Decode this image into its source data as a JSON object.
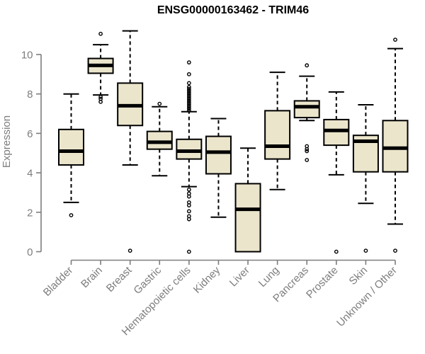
{
  "chart_data": {
    "type": "boxplot",
    "title": "ENSG00000163462 - TRIM46",
    "ylabel": "Expression",
    "xlabel": "",
    "ylim": [
      0,
      11.5
    ],
    "yticks": [
      0,
      2,
      4,
      6,
      8,
      10
    ],
    "grid": false,
    "legend": "none",
    "colors": {
      "box_fill": "#ebe5cc",
      "box_stroke": "#000000",
      "axis": "#7d7d7d",
      "label_text": "#7d7d7d",
      "title_text": "#000000"
    },
    "categories": [
      "Bladder",
      "Brain",
      "Breast",
      "Gastric",
      "Hematopoietic cells",
      "Kidney",
      "Liver",
      "Lung",
      "Pancreas",
      "Prostate",
      "Skin",
      "Unknown / Other"
    ],
    "boxes": [
      {
        "label": "Bladder",
        "whisker_low": 2.5,
        "q1": 4.4,
        "median": 5.1,
        "q3": 6.2,
        "whisker_high": 8.0,
        "outliers": [
          1.85
        ]
      },
      {
        "label": "Brain",
        "whisker_low": 7.95,
        "q1": 9.05,
        "median": 9.45,
        "q3": 9.8,
        "whisker_high": 10.5,
        "outliers": [
          11.05,
          7.85,
          7.75,
          7.6
        ]
      },
      {
        "label": "Breast",
        "whisker_low": 4.4,
        "q1": 6.4,
        "median": 7.4,
        "q3": 8.55,
        "whisker_high": 11.2,
        "outliers": [
          0.05
        ]
      },
      {
        "label": "Gastric",
        "whisker_low": 3.85,
        "q1": 5.2,
        "median": 5.55,
        "q3": 6.1,
        "whisker_high": 7.35,
        "outliers": [
          7.5
        ]
      },
      {
        "label": "Hematopoietic cells",
        "whisker_low": 3.3,
        "q1": 4.7,
        "median": 5.1,
        "q3": 5.7,
        "whisker_high": 7.1,
        "outliers": [
          9.6,
          9.0,
          8.55,
          8.35,
          8.25,
          8.15,
          8.05,
          7.95,
          7.85,
          7.75,
          7.65,
          7.55,
          7.45,
          7.35,
          7.25,
          7.15,
          3.15,
          2.95,
          2.8,
          2.5,
          2.35,
          2.05,
          1.8,
          1.65,
          0.0
        ]
      },
      {
        "label": "Kidney",
        "whisker_low": 1.75,
        "q1": 3.95,
        "median": 5.05,
        "q3": 5.85,
        "whisker_high": 6.75,
        "outliers": []
      },
      {
        "label": "Liver",
        "whisker_low": 0.0,
        "q1": 0.0,
        "median": 2.15,
        "q3": 3.45,
        "whisker_high": 5.25,
        "outliers": []
      },
      {
        "label": "Lung",
        "whisker_low": 3.15,
        "q1": 4.7,
        "median": 5.35,
        "q3": 7.15,
        "whisker_high": 9.1,
        "outliers": []
      },
      {
        "label": "Pancreas",
        "whisker_low": 6.65,
        "q1": 6.8,
        "median": 7.35,
        "q3": 7.65,
        "whisker_high": 8.9,
        "outliers": [
          9.45,
          5.35,
          5.2,
          5.1,
          4.65
        ]
      },
      {
        "label": "Prostate",
        "whisker_low": 3.9,
        "q1": 5.4,
        "median": 6.15,
        "q3": 6.7,
        "whisker_high": 8.1,
        "outliers": [
          0.0
        ]
      },
      {
        "label": "Skin",
        "whisker_low": 2.45,
        "q1": 4.05,
        "median": 5.6,
        "q3": 5.9,
        "whisker_high": 7.45,
        "outliers": [
          0.05
        ]
      },
      {
        "label": "Unknown / Other",
        "whisker_low": 1.4,
        "q1": 4.05,
        "median": 5.25,
        "q3": 6.65,
        "whisker_high": 10.3,
        "outliers": [
          10.75,
          0.05
        ]
      }
    ]
  }
}
